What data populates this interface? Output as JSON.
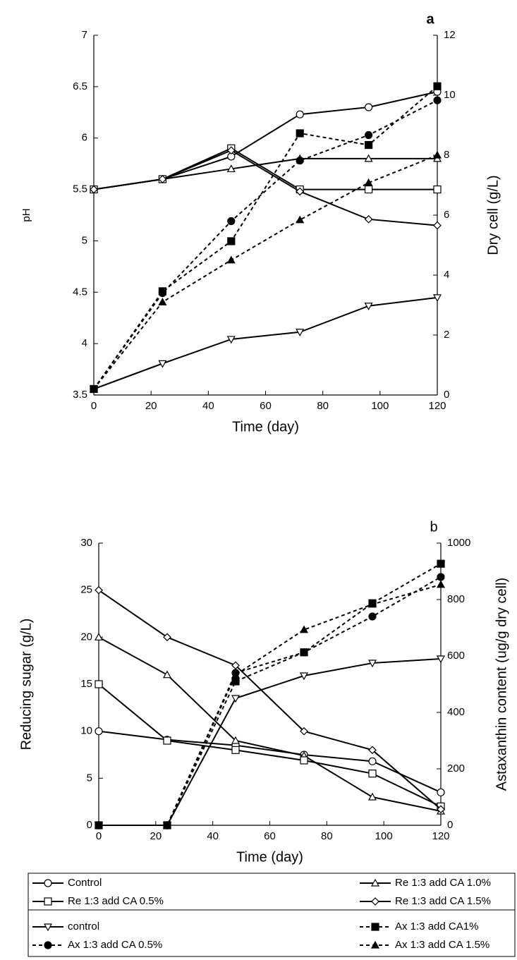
{
  "chart_data": [
    {
      "type": "line",
      "label": "a",
      "xlabel": "Time (day)",
      "ylabel": "pH",
      "y2label": "Dry cell (g/L)",
      "x": [
        0,
        24,
        48,
        72,
        96,
        120
      ],
      "xlim": [
        0,
        120
      ],
      "xticks": [
        0,
        20,
        40,
        60,
        80,
        100,
        120
      ],
      "ylim": [
        3.5,
        7
      ],
      "yticks": [
        3.5,
        4,
        4.5,
        5,
        5.5,
        6,
        6.5,
        7
      ],
      "y2lim": [
        0,
        12
      ],
      "y2ticks": [
        0,
        2,
        4,
        6,
        8,
        10,
        12
      ],
      "series": [
        {
          "marker": "circle",
          "color": "#000000",
          "dash": false,
          "values": [
            5.5,
            5.6,
            5.82,
            6.23,
            6.3,
            6.45
          ]
        },
        {
          "marker": "triangle",
          "color": "#000000",
          "dash": false,
          "values": [
            5.5,
            5.6,
            5.7,
            5.8,
            5.8,
            5.8
          ]
        },
        {
          "marker": "square",
          "color": "#000000",
          "dash": false,
          "values": [
            5.5,
            5.6,
            5.9,
            5.5,
            5.5,
            5.5
          ]
        },
        {
          "marker": "diamond",
          "color": "#000000",
          "dash": false,
          "values": [
            5.5,
            5.6,
            5.88,
            5.48,
            5.21,
            5.15
          ]
        },
        {
          "marker": "triangle-down",
          "color": "#000000",
          "dash": false,
          "axis": "y2",
          "values": [
            0.2,
            1.05,
            1.86,
            2.1,
            2.97,
            3.25
          ]
        },
        {
          "marker": "square-filled",
          "color": "#000000",
          "dash": true,
          "axis": "y2",
          "values": [
            0.2,
            3.46,
            5.13,
            8.73,
            8.34,
            10.3
          ]
        },
        {
          "marker": "circle-filled",
          "color": "#000000",
          "dash": true,
          "axis": "y2",
          "values": [
            0.2,
            3.4,
            5.8,
            7.82,
            8.67,
            9.83
          ]
        },
        {
          "marker": "triangle-filled",
          "color": "#000000",
          "dash": true,
          "axis": "y2",
          "values": [
            0.2,
            3.1,
            4.5,
            5.84,
            7.08,
            8.0
          ]
        }
      ]
    },
    {
      "type": "line",
      "label": "b",
      "xlabel": "Time (day)",
      "ylabel": "Reducing sugar (g/L)",
      "y2label": "Astaxanthin content (ug/g dry cell)",
      "x": [
        0,
        24,
        48,
        72,
        96,
        120
      ],
      "xlim": [
        0,
        120
      ],
      "xticks": [
        0,
        20,
        40,
        60,
        80,
        100,
        120
      ],
      "ylim": [
        0,
        30
      ],
      "yticks": [
        0,
        5,
        10,
        15,
        20,
        25,
        30
      ],
      "y2lim": [
        0,
        1000
      ],
      "y2ticks": [
        0,
        200,
        400,
        600,
        800,
        1000
      ],
      "legend": "bottom",
      "series": [
        {
          "name": "Control",
          "marker": "circle",
          "color": "#000000",
          "dash": false,
          "values": [
            10,
            9.1,
            8.5,
            7.5,
            6.8,
            3.5
          ]
        },
        {
          "name": "Re 1:3 add CA 1.0%",
          "marker": "triangle",
          "color": "#000000",
          "dash": false,
          "values": [
            20,
            16,
            9,
            7.4,
            3,
            1.5
          ]
        },
        {
          "name": "Re 1:3 add CA 0.5%",
          "marker": "square",
          "color": "#000000",
          "dash": false,
          "values": [
            15,
            9,
            8,
            6.9,
            5.5,
            2
          ]
        },
        {
          "name": "Re 1:3 add CA 1.5%",
          "marker": "diamond",
          "color": "#000000",
          "dash": false,
          "values": [
            25,
            20,
            17,
            10,
            8,
            1.7
          ]
        },
        {
          "name": "control",
          "marker": "triangle-down",
          "color": "#000000",
          "dash": false,
          "axis": "y2",
          "values": [
            0,
            0,
            450,
            530,
            575,
            590
          ]
        },
        {
          "name": "Ax 1:3 add CA1%",
          "marker": "square-filled",
          "color": "#000000",
          "dash": true,
          "axis": "y2",
          "values": [
            0,
            0,
            510,
            613,
            787,
            927
          ]
        },
        {
          "name": "Ax 1:3 add CA 0.5%",
          "marker": "circle-filled",
          "color": "#000000",
          "dash": true,
          "axis": "y2",
          "values": [
            0,
            0,
            540,
            613,
            740,
            880
          ]
        },
        {
          "name": "Ax 1:3 add CA 1.5%",
          "marker": "triangle-filled",
          "color": "#000000",
          "dash": true,
          "axis": "y2",
          "values": [
            0,
            0,
            533,
            693,
            783,
            853
          ]
        }
      ]
    }
  ]
}
